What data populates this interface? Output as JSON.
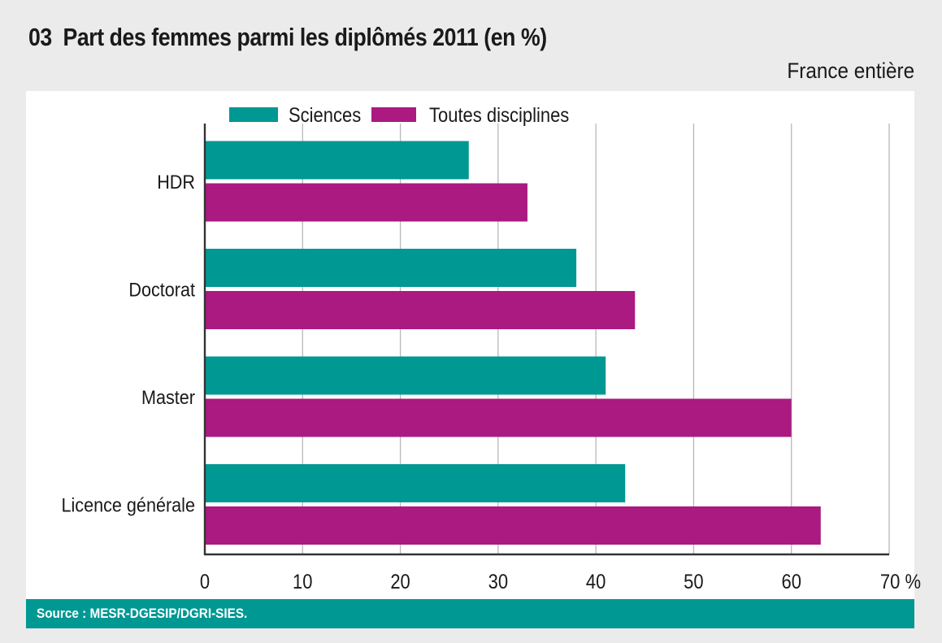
{
  "header": {
    "number": "03",
    "title": "Part des femmes parmi les diplômés 2011 (en %)",
    "subtitle": "France entière"
  },
  "footer": {
    "source": "Source : MESR-DGESIP/DGRI-SIES."
  },
  "chart_data": {
    "type": "bar",
    "orientation": "horizontal",
    "title": "Part des femmes parmi les diplômés 2011 (en %)",
    "subtitle": "France entière",
    "categories": [
      "HDR",
      "Doctorat",
      "Master",
      "Licence générale"
    ],
    "series": [
      {
        "name": "Sciences",
        "color": "#009893",
        "values": [
          27,
          38,
          41,
          43
        ]
      },
      {
        "name": "Toutes disciplines",
        "color": "#aa1a80",
        "values": [
          33,
          44,
          60,
          63
        ]
      }
    ],
    "xlim": [
      0,
      70
    ],
    "xticks": [
      0,
      10,
      20,
      30,
      40,
      50,
      60,
      70
    ],
    "xtick_labels": [
      "0",
      "10",
      "20",
      "30",
      "40",
      "50",
      "60",
      "70 %"
    ],
    "xlabel": "",
    "ylabel": "",
    "grid": true,
    "legend": "top"
  }
}
